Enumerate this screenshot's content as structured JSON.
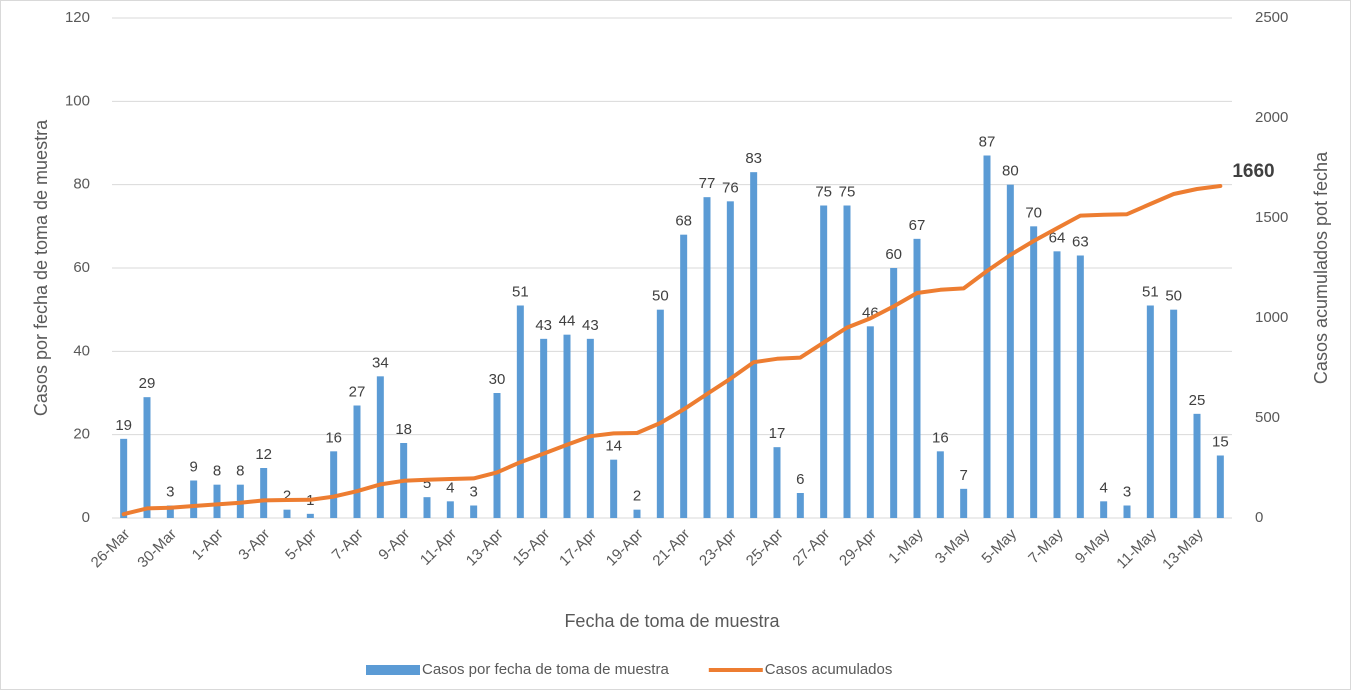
{
  "chart_data": {
    "type": "bar+line",
    "x_label": "Fecha de toma de muestra",
    "y_label": "Casos por fecha de toma de muestra",
    "y2_label": "Casos acumulados pot fecha",
    "categories": [
      "26-Mar",
      null,
      "30-Mar",
      null,
      "1-Apr",
      null,
      "3-Apr",
      null,
      "5-Apr",
      null,
      "7-Apr",
      null,
      "9-Apr",
      null,
      "11-Apr",
      null,
      "13-Apr",
      null,
      "15-Apr",
      null,
      "17-Apr",
      null,
      "19-Apr",
      null,
      "21-Apr",
      null,
      "23-Apr",
      null,
      "25-Apr",
      null,
      "27-Apr",
      null,
      "29-Apr",
      null,
      "1-May",
      null,
      "3-May",
      null,
      "5-May",
      null,
      "7-May",
      null,
      "9-May",
      null,
      "11-May",
      null,
      "13-May",
      null
    ],
    "series": [
      {
        "name": "Casos por fecha de toma de muestra",
        "type": "bar",
        "color": "#5b9bd5",
        "values": [
          19,
          29,
          3,
          9,
          8,
          8,
          12,
          2,
          1,
          16,
          27,
          34,
          18,
          5,
          4,
          3,
          30,
          51,
          43,
          44,
          43,
          14,
          2,
          50,
          68,
          77,
          76,
          83,
          17,
          6,
          75,
          75,
          46,
          60,
          67,
          16,
          7,
          87,
          80,
          70,
          64,
          63,
          4,
          3,
          51,
          50,
          25,
          15
        ]
      },
      {
        "name": "Casos acumulados",
        "type": "line",
        "axis": "y2",
        "color": "#ed7d31",
        "values": [
          19,
          48,
          51,
          60,
          68,
          76,
          88,
          90,
          91,
          107,
          134,
          168,
          186,
          191,
          195,
          198,
          228,
          279,
          322,
          366,
          409,
          423,
          425,
          475,
          543,
          620,
          696,
          779,
          796,
          802,
          877,
          952,
          998,
          1058,
          1125,
          1141,
          1148,
          1235,
          1315,
          1385,
          1449,
          1512,
          1516,
          1519,
          1570,
          1620,
          1645,
          1660
        ]
      }
    ],
    "ylim": [
      0,
      120
    ],
    "yticks": [
      0,
      20,
      40,
      60,
      80,
      100,
      120
    ],
    "y2lim": [
      0,
      2500
    ],
    "y2ticks": [
      0,
      500,
      1000,
      1500,
      2000,
      2500
    ],
    "grid": true,
    "legend": "bottom"
  }
}
